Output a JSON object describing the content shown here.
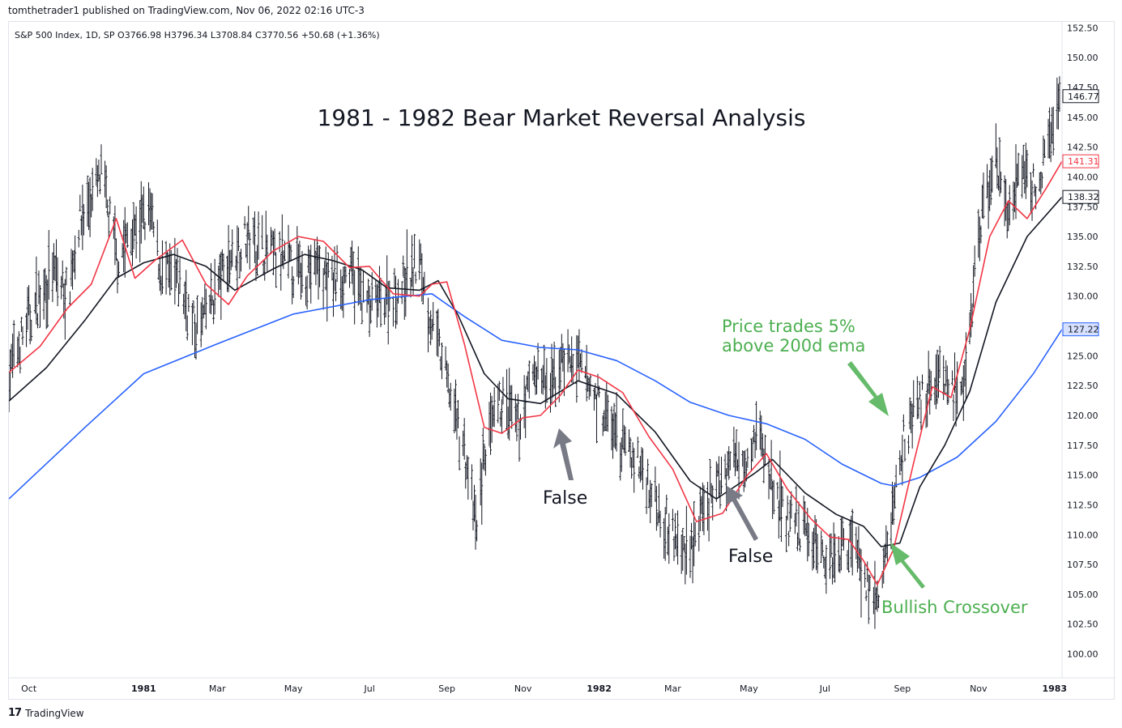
{
  "header": {
    "publisher_line": "tomthetrader1 published on TradingView.com, Nov 06, 2022 02:16 UTC-3",
    "legend": "S&P 500 Index, 1D, SP  O3766.98  H3796.34  L3708.84  C3770.56  +50.68 (+1.36%)"
  },
  "footer": {
    "logo_text": "17",
    "brand": "TradingView"
  },
  "colors": {
    "ema200": "#2962ff",
    "ema20": "#f23645",
    "ema50": "#131722",
    "bars": "#131722",
    "annot_green": "#4caf50",
    "annot_gray": "#6b6f7a"
  },
  "chart_data": {
    "type": "line",
    "title": "1981 - 1982 Bear Market Reversal Analysis",
    "x_range": [
      "1980-09-15",
      "1983-01-07"
    ],
    "ylim": [
      98,
      153
    ],
    "y_ticks": [
      "152.50",
      "150.00",
      "147.50",
      "145.00",
      "142.50",
      "140.00",
      "137.50",
      "135.00",
      "132.50",
      "130.00",
      "127.50",
      "125.00",
      "122.50",
      "120.00",
      "117.50",
      "115.00",
      "112.50",
      "110.00",
      "107.50",
      "105.00",
      "102.50",
      "100.00"
    ],
    "x_ticks": [
      {
        "date": "1980-10-01",
        "label": "Oct",
        "bold": false
      },
      {
        "date": "1981-01-01",
        "label": "1981",
        "bold": true
      },
      {
        "date": "1981-03-01",
        "label": "Mar",
        "bold": false
      },
      {
        "date": "1981-05-01",
        "label": "May",
        "bold": false
      },
      {
        "date": "1981-07-01",
        "label": "Jul",
        "bold": false
      },
      {
        "date": "1981-09-01",
        "label": "Sep",
        "bold": false
      },
      {
        "date": "1981-11-01",
        "label": "Nov",
        "bold": false
      },
      {
        "date": "1982-01-01",
        "label": "1982",
        "bold": true
      },
      {
        "date": "1982-03-01",
        "label": "Mar",
        "bold": false
      },
      {
        "date": "1982-05-01",
        "label": "May",
        "bold": false
      },
      {
        "date": "1982-07-01",
        "label": "Jul",
        "bold": false
      },
      {
        "date": "1982-09-01",
        "label": "Sep",
        "bold": false
      },
      {
        "date": "1982-11-01",
        "label": "Nov",
        "bold": false
      },
      {
        "date": "1983-01-01",
        "label": "1983",
        "bold": true
      }
    ],
    "price_labels": [
      {
        "value": 146.77,
        "text": "146.77",
        "series": "price"
      },
      {
        "value": 141.31,
        "text": "141.31",
        "series": "ema20"
      },
      {
        "value": 138.32,
        "text": "138.32",
        "series": "ema50"
      },
      {
        "value": 127.22,
        "text": "127.22",
        "series": "ema200"
      }
    ],
    "price": {
      "name": "",
      "x": [
        "1980-09-15",
        "1980-10-01",
        "1980-10-20",
        "1980-11-01",
        "1980-11-10",
        "1980-11-28",
        "1980-12-11",
        "1980-12-20",
        "1981-01-06",
        "1981-01-15",
        "1981-01-30",
        "1981-02-12",
        "1981-02-22",
        "1981-03-10",
        "1981-03-25",
        "1981-04-06",
        "1981-04-20",
        "1981-05-05",
        "1981-05-20",
        "1981-06-01",
        "1981-06-15",
        "1981-07-01",
        "1981-07-15",
        "1981-07-25",
        "1981-08-10",
        "1981-08-17",
        "1981-09-01",
        "1981-09-15",
        "1981-09-25",
        "1981-10-01",
        "1981-10-15",
        "1981-10-28",
        "1981-11-10",
        "1981-11-23",
        "1981-12-03",
        "1981-12-15",
        "1982-01-01",
        "1982-01-15",
        "1982-02-01",
        "1982-02-20",
        "1982-03-08",
        "1982-03-20",
        "1982-03-31",
        "1982-04-15",
        "1982-04-30",
        "1982-05-07",
        "1982-05-20",
        "1982-06-01",
        "1982-06-18",
        "1982-07-01",
        "1982-07-15",
        "1982-07-25",
        "1982-08-02",
        "1982-08-12",
        "1982-08-20",
        "1982-09-01",
        "1982-09-15",
        "1982-10-01",
        "1982-10-11",
        "1982-10-20",
        "1982-10-25",
        "1982-11-04",
        "1982-11-15",
        "1982-11-25",
        "1982-12-08",
        "1982-12-20",
        "1983-01-05"
      ],
      "y": [
        123.5,
        128,
        132,
        130,
        136,
        140,
        133,
        135,
        137,
        132,
        131,
        127,
        129,
        133,
        135,
        134,
        133,
        132,
        132.5,
        131,
        132,
        129,
        130,
        130.5,
        133,
        129,
        123,
        117,
        110,
        117,
        121,
        119,
        124,
        122,
        125,
        124,
        121,
        118,
        116,
        112,
        108.5,
        110,
        113,
        116,
        117,
        119,
        114,
        111,
        110,
        108,
        109,
        110,
        106,
        104,
        109,
        118,
        121,
        124,
        122,
        121,
        128,
        137,
        141,
        137,
        140,
        139,
        146.77
      ]
    },
    "ema200": {
      "name": "",
      "x": [
        "1980-09-15",
        "1980-11-15",
        "1981-01-01",
        "1981-03-01",
        "1981-05-01",
        "1981-07-01",
        "1981-08-20",
        "1981-09-15",
        "1981-10-15",
        "1981-11-15",
        "1981-12-15",
        "1982-01-15",
        "1982-02-15",
        "1982-03-15",
        "1982-04-15",
        "1982-05-15",
        "1982-06-15",
        "1982-07-15",
        "1982-08-15",
        "1982-08-25",
        "1982-09-15",
        "1982-10-15",
        "1982-11-15",
        "1982-12-15",
        "1983-01-07"
      ],
      "y": [
        113,
        119,
        123.5,
        126,
        128.5,
        129.7,
        130.2,
        128.3,
        126.3,
        125.7,
        125.5,
        124.6,
        122.9,
        121.1,
        120,
        119.3,
        118,
        115.9,
        114.3,
        114.1,
        114.8,
        116.5,
        119.5,
        123.5,
        127.22
      ]
    },
    "ema20": {
      "name": "",
      "x": [
        "1980-09-15",
        "1980-10-10",
        "1980-11-01",
        "1980-11-20",
        "1980-12-10",
        "1980-12-25",
        "1981-01-10",
        "1981-02-01",
        "1981-02-20",
        "1981-03-10",
        "1981-03-25",
        "1981-04-15",
        "1981-05-05",
        "1981-05-25",
        "1981-06-15",
        "1981-07-01",
        "1981-07-20",
        "1981-08-10",
        "1981-08-20",
        "1981-09-01",
        "1981-09-15",
        "1981-10-01",
        "1981-10-15",
        "1981-11-01",
        "1981-11-15",
        "1981-12-01",
        "1981-12-15",
        "1982-01-01",
        "1982-01-20",
        "1982-02-10",
        "1982-03-01",
        "1982-03-20",
        "1982-04-10",
        "1982-04-30",
        "1982-05-15",
        "1982-06-01",
        "1982-06-20",
        "1982-07-05",
        "1982-07-20",
        "1982-08-01",
        "1982-08-12",
        "1982-08-25",
        "1982-09-10",
        "1982-09-25",
        "1982-10-10",
        "1982-10-25",
        "1982-11-10",
        "1982-11-25",
        "1982-12-10",
        "1982-12-25",
        "1983-01-07"
      ],
      "y": [
        123.6,
        125.8,
        129,
        131,
        136.5,
        131.5,
        133,
        134.7,
        131,
        129.3,
        131.7,
        133.8,
        135,
        134.6,
        132.4,
        132.5,
        130.2,
        130,
        131,
        131.2,
        126,
        119,
        118.5,
        119.8,
        120,
        121.7,
        123.8,
        123.2,
        121.9,
        118.2,
        115.5,
        111.1,
        111.8,
        115,
        116.8,
        113.8,
        111.3,
        109.8,
        109.6,
        107.8,
        105.8,
        108.8,
        116,
        122.4,
        121.5,
        127.2,
        135,
        138,
        136.5,
        139,
        141.31
      ]
    },
    "ema50": {
      "name": "",
      "x": [
        "1980-09-15",
        "1980-10-15",
        "1980-11-15",
        "1980-12-10",
        "1981-01-01",
        "1981-01-25",
        "1981-02-20",
        "1981-03-15",
        "1981-04-15",
        "1981-05-10",
        "1981-06-01",
        "1981-06-25",
        "1981-07-15",
        "1981-08-10",
        "1981-08-25",
        "1981-09-10",
        "1981-10-01",
        "1981-10-20",
        "1981-11-15",
        "1981-12-15",
        "1982-01-15",
        "1982-02-15",
        "1982-03-15",
        "1982-04-05",
        "1982-05-05",
        "1982-05-20",
        "1982-06-15",
        "1982-07-10",
        "1982-08-01",
        "1982-08-15",
        "1982-08-30",
        "1982-09-15",
        "1982-10-05",
        "1982-10-25",
        "1982-11-15",
        "1982-12-10",
        "1983-01-07"
      ],
      "y": [
        121.2,
        124,
        128,
        131.5,
        132.8,
        133.5,
        132.5,
        130.5,
        132.3,
        133.5,
        133,
        132.2,
        130.7,
        130.5,
        131.3,
        128.4,
        123.5,
        121.4,
        121,
        122.9,
        121.8,
        118.6,
        114.5,
        113,
        115.1,
        116.3,
        113.5,
        111.7,
        110.7,
        109,
        109.3,
        114,
        117.5,
        122,
        129.5,
        135,
        138.32
      ]
    }
  },
  "annotations": {
    "false_1": "False",
    "false_2": "False",
    "price_trades": [
      "Price trades 5%",
      "above 200d ema"
    ],
    "bullish": "Bullish Crossover"
  }
}
